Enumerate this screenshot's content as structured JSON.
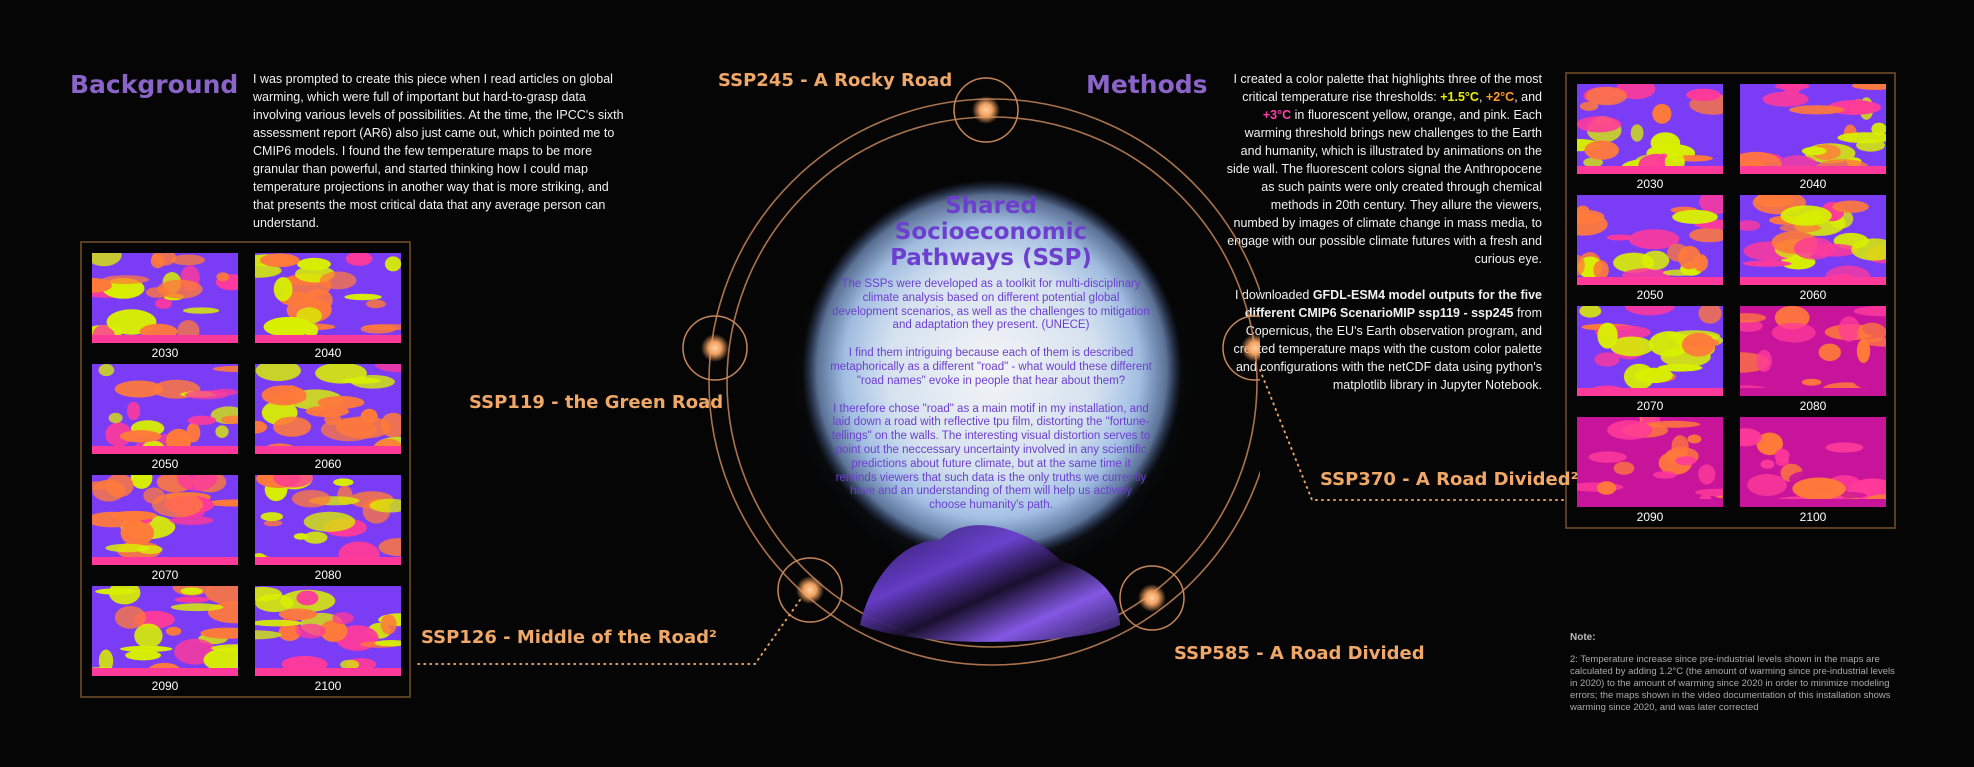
{
  "background": {
    "heading": "Background",
    "text": "I was prompted to create this piece when I read articles on global warming, which were full of important but hard-to-grasp data involving various levels of possibilities. At the time, the IPCC's sixth assessment report (AR6) also just came out, which pointed me to CMIP6 models. I found the few temperature maps to be more granular than powerful, and started thinking how I could map temperature projections in another way that is more striking, and that presents the most critical data that any average person can understand."
  },
  "methods": {
    "heading": "Methods",
    "para1_before": "I created a color palette that highlights three of the most critical temperature rise thresholds: ",
    "t1": "+1.5°C",
    "t1_color": "#e8f000",
    "sep1": ", ",
    "t2": "+2°C",
    "t2_color": "#ff9a2a",
    "sep2": ", and ",
    "t3": "+3°C",
    "t3_color": "#ff3fa8",
    "para1_after": " in fluorescent yellow, orange, and pink. Each warming threshold brings new challenges to the Earth and humanity, which is illustrated by animations on the side wall. The fluorescent colors signal the Anthropocene as such paints were only created through chemical methods in 20th century. They allure the viewers, numbed by images of climate change in mass media, to engage with our possible climate futures with a fresh and curious eye.",
    "para2_before": "I downloaded ",
    "para2_bold": "GFDL-ESM4 model outputs for the five different CMIP6 ScenarioMIP ssp119 - ssp245",
    "para2_after": " from Copernicus, the EU's Earth observation program, and created temperature maps with the custom color palette and configurations with the netCDF data using python's matplotlib library in Jupyter Notebook."
  },
  "center": {
    "title": "Shared Socioeconomic Pathways (SSP)",
    "p1": "The SSPs were developed as a toolkit for multi-disciplinary climate analysis based on different potential global development scenarios, as well as the challenges to mitigation and adaptation they present. (UNECE)",
    "p2": "I find them intriguing because each of them is described metaphorically as a different \"road\" - what would these different \"road names\" evoke in people that hear about them?",
    "p3": "I therefore chose \"road\" as a main motif in my installation, and laid down a road with reflective tpu film, distorting the \"fortune-tellings\" on the walls. The interesting visual distortion serves to point out the neccessary uncertainty involved in any scientific predictions about future climate, but at the same time it reminds viewers that such data is the only truths we currently have and an understanding of them will help us actively choose humanity's path."
  },
  "ssp_labels": {
    "ssp245": "SSP245 - A Rocky Road",
    "ssp119": "SSP119 - the Green Road",
    "ssp126": "SSP126 - Middle of the Road²",
    "ssp585": "SSP585 - A Road Divided",
    "ssp370": "SSP370 - A Road Divided²"
  },
  "left_maps": [
    {
      "year": "2030"
    },
    {
      "year": "2040"
    },
    {
      "year": "2050"
    },
    {
      "year": "2060"
    },
    {
      "year": "2070"
    },
    {
      "year": "2080"
    },
    {
      "year": "2090"
    },
    {
      "year": "2100"
    }
  ],
  "right_maps": [
    {
      "year": "2030"
    },
    {
      "year": "2040"
    },
    {
      "year": "2050"
    },
    {
      "year": "2060"
    },
    {
      "year": "2070"
    },
    {
      "year": "2080"
    },
    {
      "year": "2090"
    },
    {
      "year": "2100"
    }
  ],
  "note": {
    "title": "Note:",
    "text": "2: Temperature increase since pre-industrial levels shown in the maps are calculated by adding 1.2°C (the amount of warming since pre-industrial levels in 2020) to the amount of warming since 2020 in order to minimize modeling errors; the maps shown in the video documentation of this installation shows warming since 2020, and was later corrected"
  },
  "colors": {
    "heading": "#8a64c8",
    "ssp_label": "#f0a868",
    "panel_border": "#5a3e22",
    "map_purple": "#7b3cf5",
    "map_yellow": "#d8f000",
    "map_orange": "#ff7a3a",
    "map_pink": "#ff3a9a",
    "map_magenta": "#c8149a"
  }
}
